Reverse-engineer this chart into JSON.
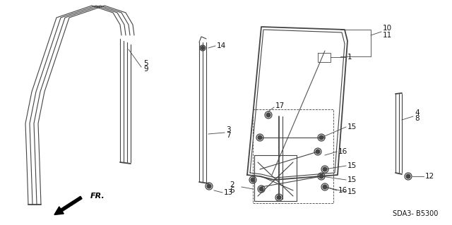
{
  "background_color": "#ffffff",
  "diagram_code": "SDA3- B5300",
  "fr_label": "FR.",
  "line_color": "#444444",
  "text_color": "#111111",
  "font_size": 7.5
}
